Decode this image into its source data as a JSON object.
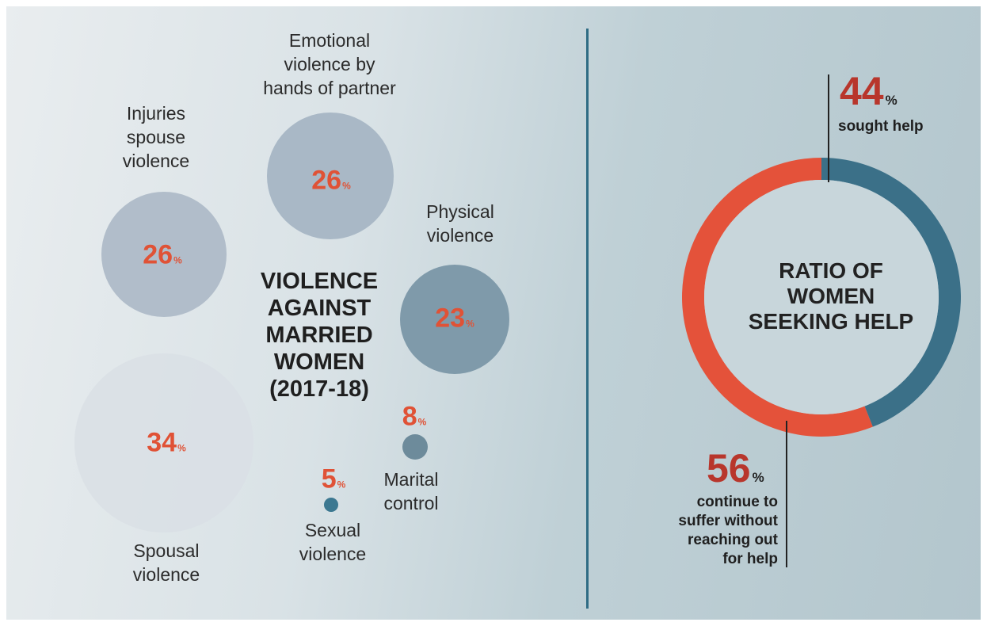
{
  "chart_data": [
    {
      "type": "bubble",
      "title": "VIOLENCE AGAINST MARRIED WOMEN (2017-18)",
      "unit": "%",
      "series": [
        {
          "label": "Emotional violence by hands of partner",
          "value": 26,
          "color": "#a9b8c6"
        },
        {
          "label": "Injuries spouse violence",
          "value": 26,
          "color": "#b1bdca"
        },
        {
          "label": "Physical violence",
          "value": 23,
          "color": "#7f9aaa"
        },
        {
          "label": "Spousal violence",
          "value": 34,
          "color": "#d9dfe5"
        },
        {
          "label": "Marital control",
          "value": 8,
          "color": "#6d8b9b"
        },
        {
          "label": "Sexual violence",
          "value": 5,
          "color": "#3c7891"
        }
      ]
    },
    {
      "type": "pie",
      "title": "RATIO OF WOMEN SEEKING HELP",
      "unit": "%",
      "slices": [
        {
          "label": "sought help",
          "value": 44,
          "color": "#3b7088"
        },
        {
          "label": "continue to suffer without reaching out for help",
          "value": 56,
          "color": "#e4523a"
        }
      ]
    }
  ],
  "labels": {
    "emotional": "Emotional\nviolence by\nhands of partner",
    "injuries": "Injuries\nspouse\nviolence",
    "physical": "Physical\nviolence",
    "spousal": "Spousal\nviolence",
    "marital": "Marital\ncontrol",
    "sexual": "Sexual\nviolence",
    "center_title": "VIOLENCE\nAGAINST\nMARRIED\nWOMEN\n(2017-18)",
    "donut_title": "RATIO OF\nWOMEN\nSEEKING HELP",
    "sought_note": "sought help",
    "suffer_note": "continue to\nsuffer without\nreaching out\nfor help",
    "pct_symbol": "%"
  }
}
